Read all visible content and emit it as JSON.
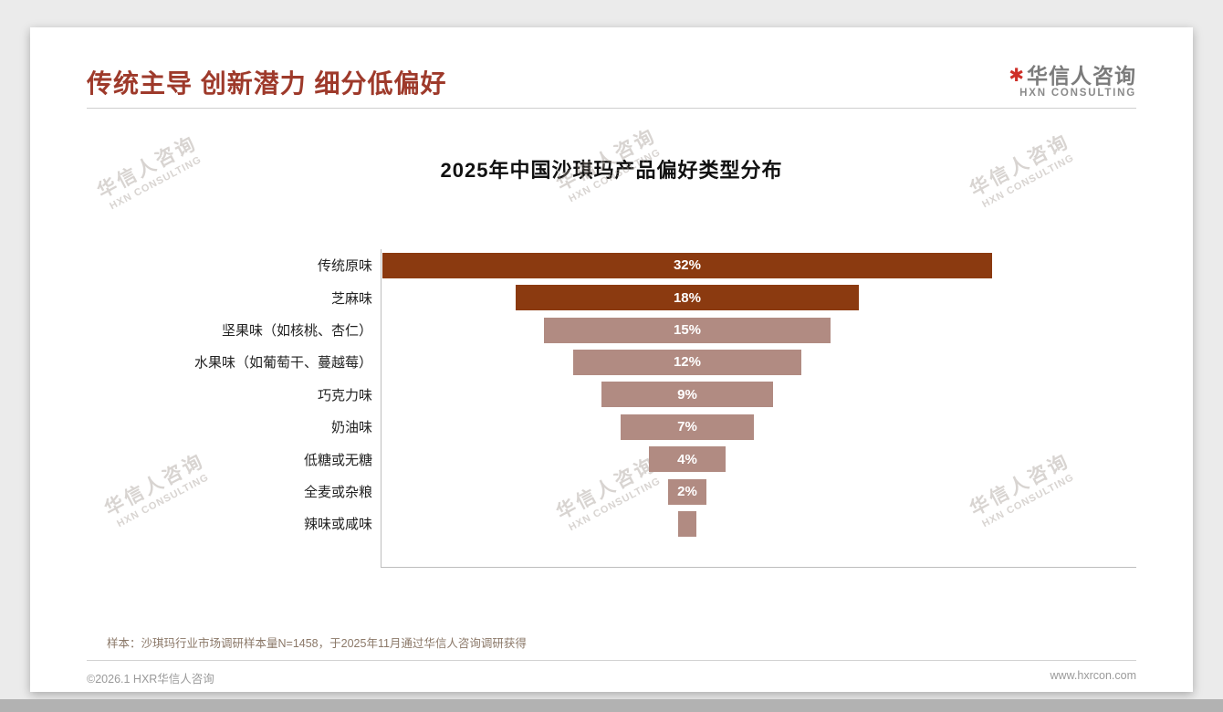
{
  "header": {
    "title": "传统主导 创新潜力 细分低偏好",
    "logo": {
      "mark": "✱",
      "name_cn": "华信人咨询",
      "name_en": "HXN CONSULTING"
    }
  },
  "watermark": {
    "line1": "华信人咨询",
    "line2": "HXN CONSULTING"
  },
  "chart_data": {
    "type": "bar",
    "variant": "horizontal-centered-funnel",
    "title": "2025年中国沙琪玛产品偏好类型分布",
    "categories": [
      "传统原味",
      "芝麻味",
      "坚果味（如核桃、杏仁）",
      "水果味（如葡萄干、蔓越莓）",
      "巧克力味",
      "奶油味",
      "低糖或无糖",
      "全麦或杂粮",
      "辣味或咸味"
    ],
    "values": [
      32,
      18,
      15,
      12,
      9,
      7,
      4,
      2,
      1
    ],
    "value_labels": [
      "32%",
      "18%",
      "15%",
      "12%",
      "9%",
      "7%",
      "4%",
      "2%",
      ""
    ],
    "bar_colors": [
      "#8B3A10",
      "#8B3A10",
      "#B18B82",
      "#B18B82",
      "#B18B82",
      "#B18B82",
      "#B18B82",
      "#B18B82",
      "#B18B82"
    ],
    "value_label_color": "#FFFFFF",
    "xlim": [
      0,
      32
    ],
    "grid": false,
    "legend": "none"
  },
  "footnote": "样本：沙琪玛行业市场调研样本量N=1458，于2025年11月通过华信人咨询调研获得",
  "footer": {
    "left": "©2026.1 HXR华信人咨询",
    "right": "www.hxrcon.com"
  },
  "colors": {
    "accent_title": "#9E3A2B",
    "bar_dark": "#8B3A10",
    "bar_light": "#B18B82",
    "logo_red": "#CE2F28",
    "footnote": "#8B7868"
  }
}
